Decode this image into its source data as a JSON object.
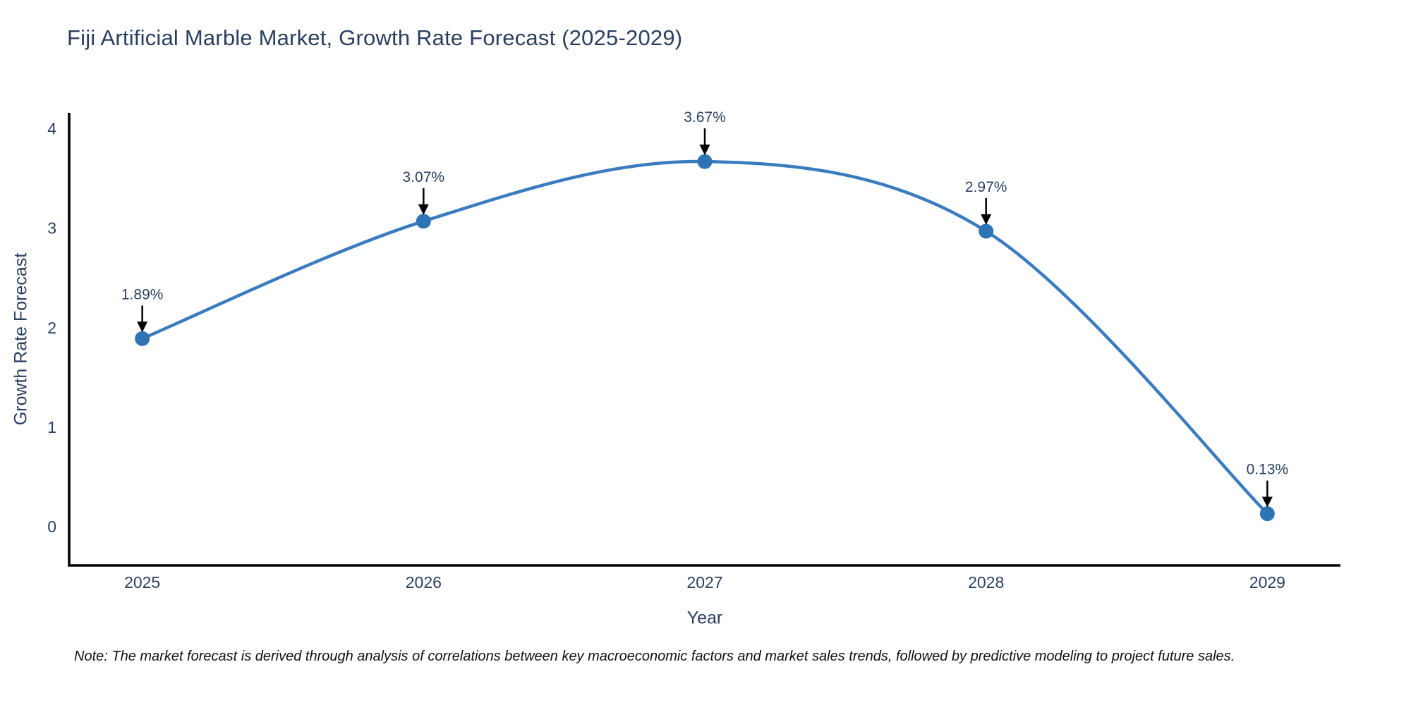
{
  "title": "Fiji Artificial Marble Market, Growth Rate Forecast (2025-2029)",
  "note": "Note: The market forecast is derived through analysis of correlations between key macroeconomic factors and market sales trends, followed by predictive modeling to project future sales.",
  "chart_data": {
    "type": "line",
    "title": "Fiji Artificial Marble Market, Growth Rate Forecast (2025-2029)",
    "xlabel": "Year",
    "ylabel": "Growth Rate Forecast",
    "x": [
      2025,
      2026,
      2027,
      2028,
      2029
    ],
    "y": [
      1.89,
      3.07,
      3.67,
      2.97,
      0.13
    ],
    "point_labels": [
      "1.89%",
      "3.07%",
      "3.67%",
      "2.97%",
      "0.13%"
    ],
    "xticks": [
      "2025",
      "2026",
      "2027",
      "2028",
      "2029"
    ],
    "yticks": [
      0,
      1,
      2,
      3,
      4
    ],
    "xlim": [
      2024.74,
      2029.26
    ],
    "ylim": [
      -0.39,
      4.16
    ],
    "grid": false,
    "legend": "none",
    "line_shape": "spline",
    "colors": {
      "line": "#3a7cbf",
      "marker": "#2e74b4",
      "axis": "#000000",
      "tick_text": "#2a3f5f",
      "annotation_text": "#2a3f5f",
      "arrow": "#000000",
      "title_text": "#2a3f5f"
    }
  }
}
